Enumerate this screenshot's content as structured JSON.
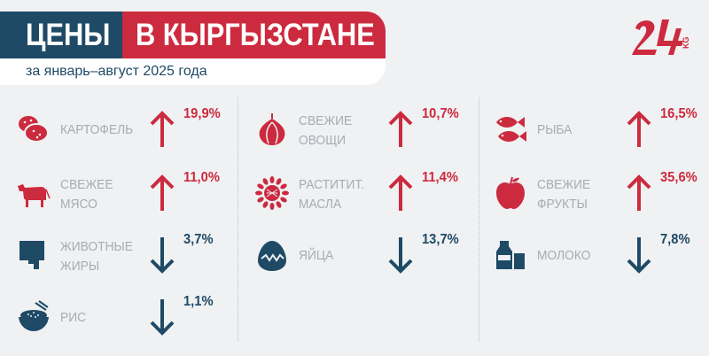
{
  "header": {
    "title_left": "ЦЕНЫ",
    "title_right": "В КЫРГЫЗСТАНЕ",
    "subtitle": "за январь–август 2025 года"
  },
  "logo": {
    "text": "24",
    "suffix": "KG"
  },
  "colors": {
    "navy": "#1e4a66",
    "red": "#cc2a3e",
    "gray_text": "#a6acb3",
    "background": "#f0f1f3"
  },
  "items": [
    {
      "label": "КАРТОФЕЛЬ",
      "value": "19,9%",
      "direction": "up",
      "icon": "potato-icon"
    },
    {
      "label": "СВЕЖЕЕ\nМЯСО",
      "value": "11,0%",
      "direction": "up",
      "icon": "cow-icon"
    },
    {
      "label": "ЖИВОТНЫЕ\nЖИРЫ",
      "value": "3,7%",
      "direction": "down",
      "icon": "butter-icon"
    },
    {
      "label": "РИС",
      "value": "1,1%",
      "direction": "down",
      "icon": "rice-bowl-icon"
    },
    {
      "label": "СВЕЖИЕ\nОВОЩИ",
      "value": "10,7%",
      "direction": "up",
      "icon": "onion-icon"
    },
    {
      "label": "РАСТИТИТ.\nМАСЛА",
      "value": "11,4%",
      "direction": "up",
      "icon": "sunflower-icon"
    },
    {
      "label": "ЯЙЦА",
      "value": "13,7%",
      "direction": "down",
      "icon": "egg-icon"
    },
    {
      "label": "РЫБА",
      "value": "16,5%",
      "direction": "up",
      "icon": "fish-icon"
    },
    {
      "label": "СВЕЖИЕ\nФРУКТЫ",
      "value": "35,6%",
      "direction": "up",
      "icon": "apple-icon"
    },
    {
      "label": "МОЛОКО",
      "value": "7,8%",
      "direction": "down",
      "icon": "milk-icon"
    }
  ]
}
